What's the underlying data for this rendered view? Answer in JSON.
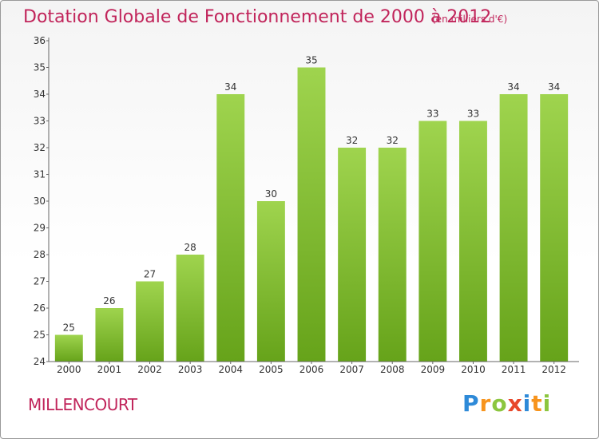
{
  "chart_data": {
    "type": "bar",
    "title": "Dotation Globale de Fonctionnement de 2000 à 2012",
    "subtitle": "(en milliers d'€)",
    "categories": [
      "2000",
      "2001",
      "2002",
      "2003",
      "2004",
      "2005",
      "2006",
      "2007",
      "2008",
      "2009",
      "2010",
      "2011",
      "2012"
    ],
    "values": [
      25,
      26,
      27,
      28,
      34,
      30,
      35,
      32,
      32,
      33,
      33,
      34,
      34
    ],
    "ylim": [
      24,
      36
    ],
    "yticks": [
      24,
      25,
      26,
      27,
      28,
      29,
      30,
      31,
      32,
      33,
      34,
      35,
      36
    ],
    "xlabel": "",
    "ylabel": "",
    "grid": false,
    "bar_color": "#8cc63f"
  },
  "footer": {
    "commune": "MILLENCOURT",
    "brand_letters": [
      "P",
      "r",
      "o",
      "x",
      "i",
      "t",
      "i"
    ],
    "brand_colors": [
      "#2e8ad8",
      "#f7941d",
      "#8cc63f",
      "#e8472a",
      "#2e8ad8",
      "#f7941d",
      "#8cc63f"
    ]
  },
  "colors": {
    "accent": "#c1255b"
  }
}
